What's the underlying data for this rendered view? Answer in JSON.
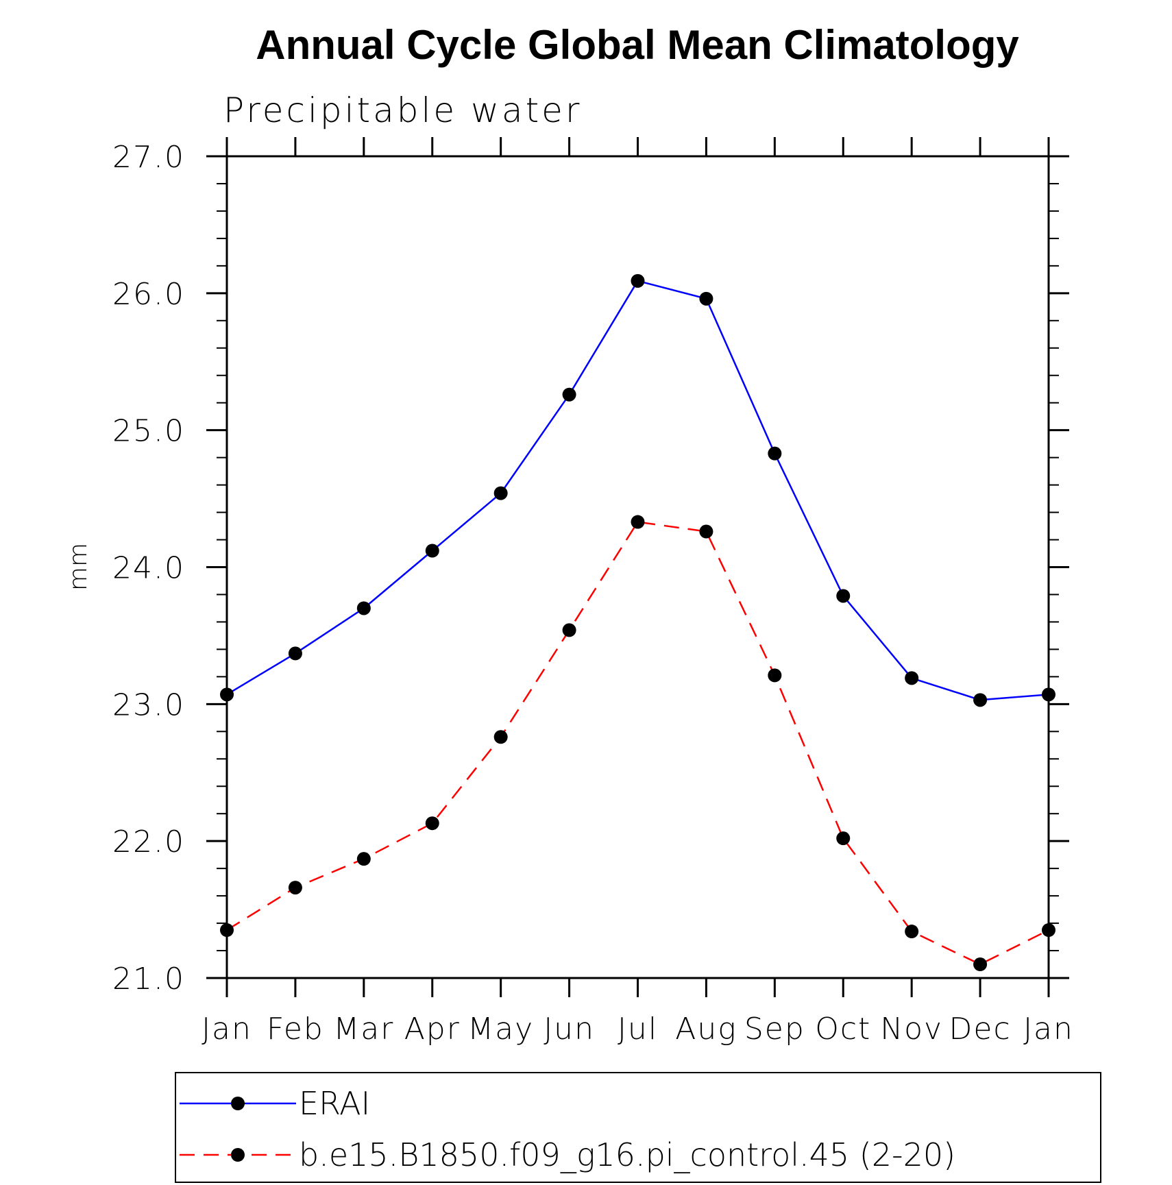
{
  "chart_data": {
    "type": "line",
    "title": "Annual Cycle Global Mean Climatology",
    "subtitle": "Precipitable water",
    "xlabel": "",
    "ylabel": "mm",
    "categories": [
      "Jan",
      "Feb",
      "Mar",
      "Apr",
      "May",
      "Jun",
      "Jul",
      "Aug",
      "Sep",
      "Oct",
      "Nov",
      "Dec",
      "Jan"
    ],
    "ylim": [
      21.0,
      27.0
    ],
    "yticks": [
      "21.0",
      "22.0",
      "23.0",
      "24.0",
      "25.0",
      "26.0",
      "27.0"
    ],
    "grid": false,
    "legend_position": "bottom",
    "series": [
      {
        "name": "ERAI",
        "color": "#0000ff",
        "line_style": "solid",
        "marker": "filled-circle",
        "values": [
          23.07,
          23.37,
          23.7,
          24.12,
          24.54,
          25.26,
          26.09,
          25.96,
          24.83,
          23.79,
          23.19,
          23.03,
          23.07
        ]
      },
      {
        "name": "b.e15.B1850.f09_g16.pi_control.45 (2-20)",
        "color": "#ff0000",
        "line_style": "dashed",
        "marker": "filled-circle",
        "values": [
          21.35,
          21.66,
          21.87,
          22.13,
          22.76,
          23.54,
          24.33,
          24.26,
          23.21,
          22.02,
          21.34,
          21.1,
          21.35
        ]
      }
    ]
  }
}
